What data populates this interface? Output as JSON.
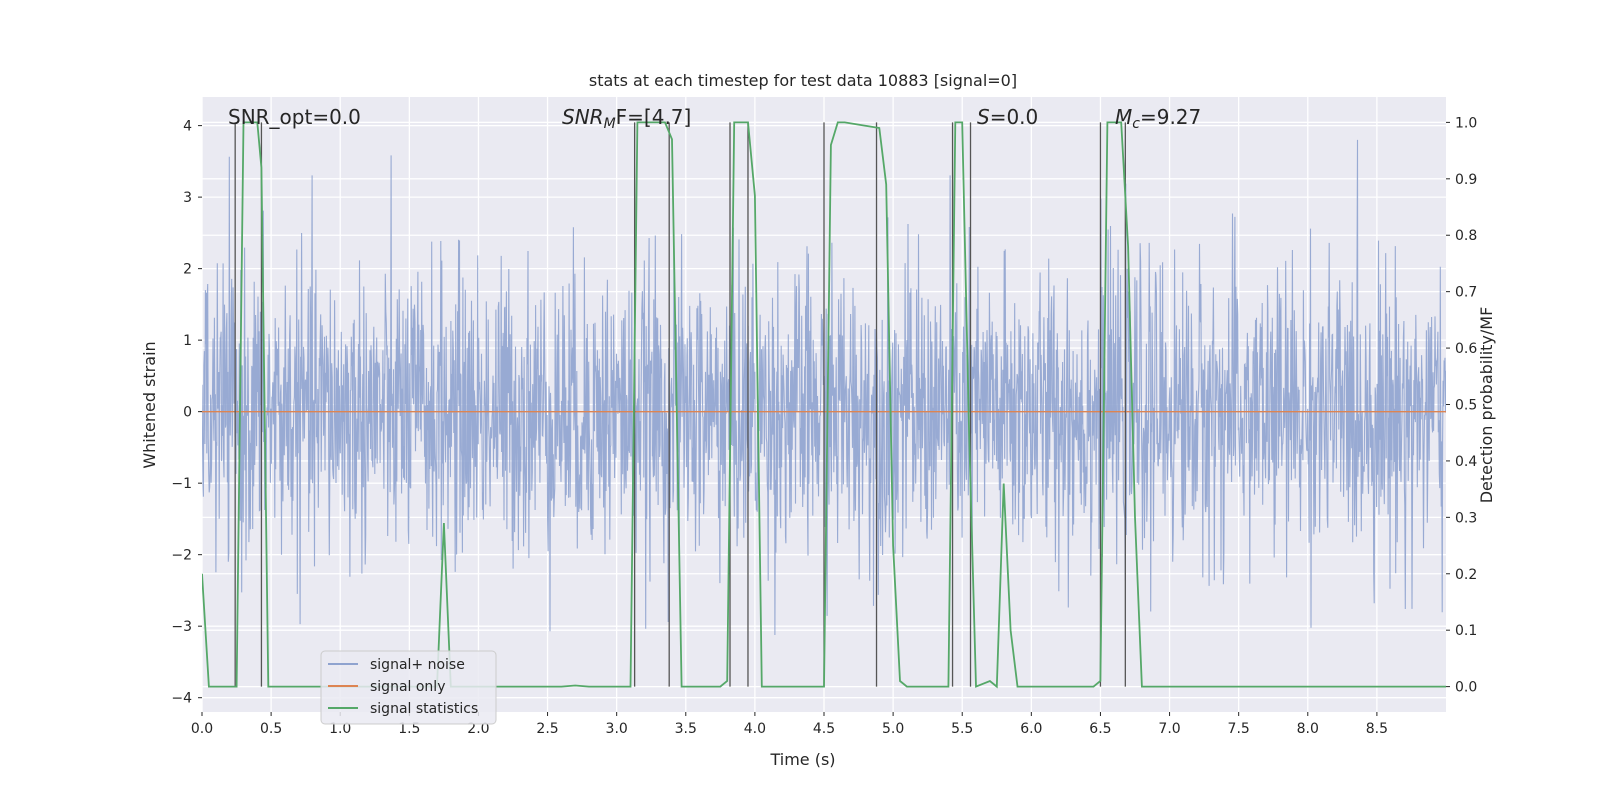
{
  "chart_data": {
    "type": "line",
    "title": "stats at each timestep for test data 10883 [signal=0]",
    "xlabel": "Time (s)",
    "ylabel_left": "Whitened strain",
    "ylabel_right": "Detection probability/MF",
    "xlim": [
      0,
      9.0
    ],
    "ylim_left": [
      -4.2,
      4.4
    ],
    "ylim_right": [
      -0.045,
      1.045
    ],
    "xticks": [
      "0.0",
      "0.5",
      "1.0",
      "1.5",
      "2.0",
      "2.5",
      "3.0",
      "3.5",
      "4.0",
      "4.5",
      "5.0",
      "5.5",
      "6.0",
      "6.5",
      "7.0",
      "7.5",
      "8.0",
      "8.5"
    ],
    "yticks_left": [
      "4",
      "3",
      "2",
      "1",
      "0",
      "−1",
      "−2",
      "−3",
      "−4"
    ],
    "yticks_right": [
      "1.0",
      "0.9",
      "0.8",
      "0.7",
      "0.6",
      "0.5",
      "0.4",
      "0.3",
      "0.2",
      "0.1",
      "0.0"
    ],
    "grid": true,
    "legend_position": "lower-left",
    "annotations": {
      "snr_opt": "SNR_opt=0.0",
      "snr_mf_base": "SNR",
      "snr_mf_sub": "M",
      "snr_mf_rest": "F=[4.7]",
      "s_base": "S",
      "s_rest": "=0.0",
      "mc_base": "M",
      "mc_sub": "c",
      "mc_rest": "=9.27"
    },
    "series": [
      {
        "name": "signal+ noise",
        "axis": "left",
        "color": "#8fa3cf",
        "description_values": "noise-dominated whitened strain, roughly within ±2.5 with peaks to about ±3.8",
        "envelope_max": 3.8
      },
      {
        "name": "signal only",
        "axis": "left",
        "color": "#dd8452",
        "x": [
          0,
          9.0
        ],
        "y": [
          0,
          0
        ]
      },
      {
        "name": "signal statistics",
        "axis": "right",
        "color": "#55a868",
        "x": [
          0.0,
          0.05,
          0.25,
          0.3,
          0.4,
          0.43,
          0.48,
          1.7,
          1.75,
          1.8,
          1.9,
          2.6,
          2.7,
          2.8,
          3.1,
          3.15,
          3.35,
          3.4,
          3.47,
          3.75,
          3.8,
          3.85,
          3.9,
          3.95,
          4.0,
          4.05,
          4.4,
          4.5,
          4.55,
          4.6,
          4.65,
          4.9,
          4.95,
          5.0,
          5.05,
          5.1,
          5.15,
          5.4,
          5.45,
          5.5,
          5.55,
          5.6,
          5.7,
          5.75,
          5.8,
          5.85,
          5.9,
          5.95,
          6.45,
          6.5,
          6.55,
          6.6,
          6.65,
          6.7,
          6.75,
          6.8,
          6.85,
          9.0
        ],
        "y": [
          0.2,
          0.0,
          0.0,
          1.0,
          1.0,
          0.92,
          0.0,
          0.0,
          0.29,
          0.0,
          0.0,
          0.0,
          0.002,
          0.0,
          0.0,
          1.0,
          1.0,
          0.97,
          0.0,
          0.0,
          0.01,
          1.0,
          1.0,
          1.0,
          0.87,
          0.0,
          0.0,
          0.0,
          0.96,
          1.0,
          1.0,
          0.99,
          0.89,
          0.25,
          0.01,
          0.0,
          0.0,
          0.0,
          1.0,
          1.0,
          0.45,
          0.0,
          0.01,
          0.0,
          0.36,
          0.1,
          0.0,
          0.0,
          0.0,
          0.01,
          1.0,
          1.0,
          1.0,
          0.78,
          0.3,
          0.0,
          0.0,
          0.0
        ]
      }
    ],
    "vertical_markers_x": [
      0.24,
      0.43,
      3.13,
      3.38,
      3.82,
      3.95,
      4.5,
      4.88,
      5.43,
      5.56,
      6.5,
      6.68
    ]
  }
}
